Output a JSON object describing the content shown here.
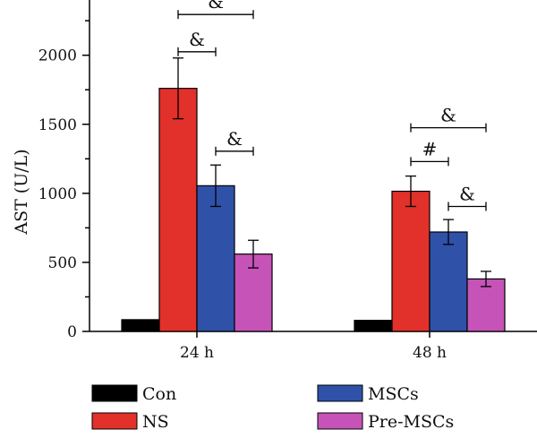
{
  "chart_data": {
    "type": "bar",
    "title": "",
    "xlabel": "",
    "ylabel": "AST (U/L)",
    "ylim": [
      0,
      2400
    ],
    "yticks": [
      0,
      500,
      1000,
      1500,
      2000
    ],
    "categories": [
      "24 h",
      "48 h"
    ],
    "series": [
      {
        "name": "Con",
        "color": "#000000",
        "values": [
          85,
          80
        ],
        "errors": [
          8,
          8
        ]
      },
      {
        "name": "NS",
        "color": "#e2302a",
        "values": [
          1760,
          1015
        ],
        "errors": [
          220,
          110
        ]
      },
      {
        "name": "MSCs",
        "color": "#2f52a8",
        "values": [
          1055,
          720
        ],
        "errors": [
          150,
          90
        ]
      },
      {
        "name": "Pre-MSCs",
        "color": "#c654b8",
        "values": [
          560,
          380
        ],
        "errors": [
          100,
          55
        ]
      }
    ],
    "annotations": [
      {
        "category": 0,
        "from_series": 1,
        "to_series": 3,
        "y": 2295,
        "label": "&"
      },
      {
        "category": 0,
        "from_series": 1,
        "to_series": 2,
        "y": 2025,
        "label": "&"
      },
      {
        "category": 0,
        "from_series": 2,
        "to_series": 3,
        "y": 1305,
        "label": "&"
      },
      {
        "category": 1,
        "from_series": 1,
        "to_series": 3,
        "y": 1475,
        "label": "&"
      },
      {
        "category": 1,
        "from_series": 1,
        "to_series": 2,
        "y": 1230,
        "label": "#"
      },
      {
        "category": 1,
        "from_series": 2,
        "to_series": 3,
        "y": 905,
        "label": "&"
      }
    ],
    "legend": {
      "placement": "bottom",
      "columns": 2
    }
  }
}
